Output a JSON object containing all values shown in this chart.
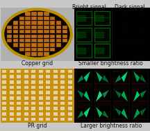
{
  "background_color": "#c8c8c8",
  "title_top_left": "Bright signal",
  "title_top_right": "Dark signal",
  "label_mid_left": "Copper grid",
  "label_mid_right": "Smaller brightness ratio",
  "label_bot_left": "PR grid",
  "label_bot_right": "Larger brightness ratio",
  "text_color": "#111111",
  "font_size": 5.5
}
